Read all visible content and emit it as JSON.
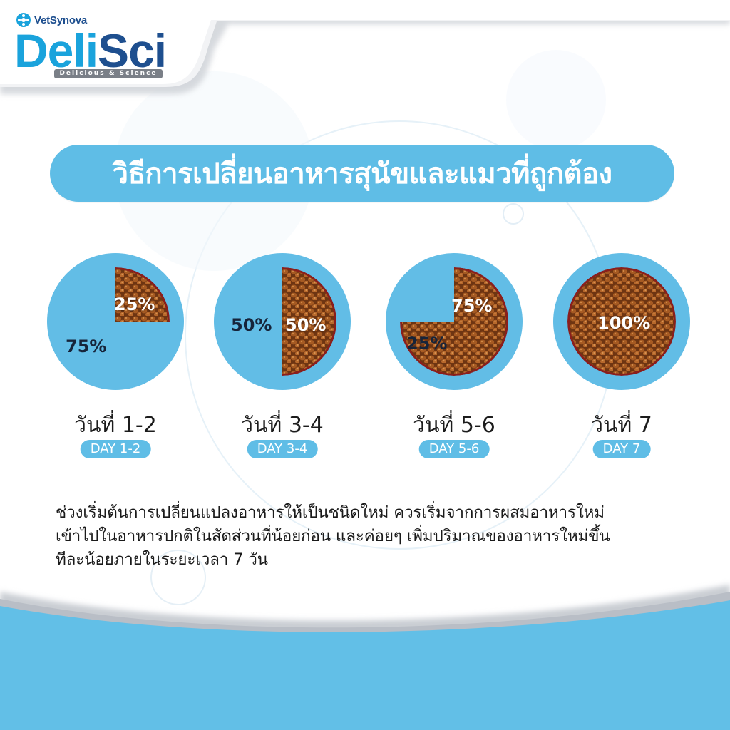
{
  "logo": {
    "company": "VetSynova",
    "wordmark_part1": "Deli",
    "wordmark_part2": "Sci",
    "tagline": "Delicious & Science"
  },
  "title": "วิธีการเปลี่ยนอาหารสุนัขและแมวที่ถูกต้อง",
  "steps": [
    {
      "old_label": "75%",
      "new_label": "25%",
      "new_fraction": 0.25,
      "day_th": "วันที่ 1-2",
      "day_en": "DAY 1-2"
    },
    {
      "old_label": "50%",
      "new_label": "50%",
      "new_fraction": 0.5,
      "day_th": "วันที่ 3-4",
      "day_en": "DAY 3-4"
    },
    {
      "old_label": "25%",
      "new_label": "75%",
      "new_fraction": 0.75,
      "day_th": "วันที่ 5-6",
      "day_en": "DAY 5-6"
    },
    {
      "old_label": "",
      "new_label": "100%",
      "new_fraction": 1.0,
      "day_th": "วันที่ 7",
      "day_en": "DAY 7"
    }
  ],
  "description": [
    "ช่วงเริ่มต้นการเปลี่ยนแปลงอาหารให้เป็นชนิดใหม่ ควรเริ่มจากการผสมอาหารใหม่",
    "เข้าไปในอาหารปกติในสัดส่วนที่น้อยก่อน และค่อยๆ เพิ่มปริมาณของอาหารใหม่ขึ้น",
    "ทีละน้อยภายในระยะเวลา 7 วัน"
  ],
  "colors": {
    "accent_blue": "#5fbde6",
    "ring_blue": "#62bde6",
    "kibble_brown": "#a65a22",
    "bowl_red": "#8a1f1c",
    "navy": "#1e4f8f"
  }
}
